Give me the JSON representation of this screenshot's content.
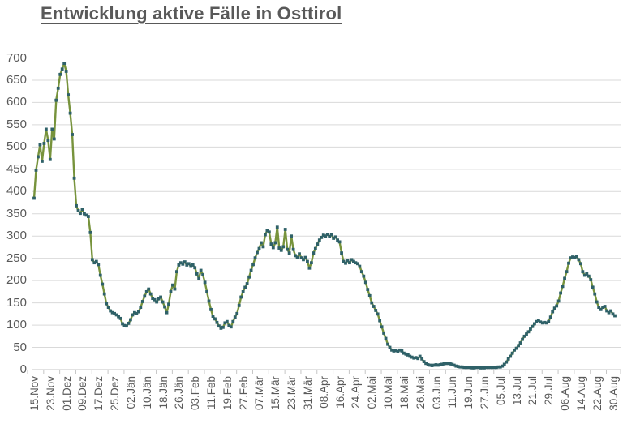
{
  "title": "Entwicklung aktive Fälle in Osttirol",
  "colors": {
    "title_text": "#595959",
    "axis_text": "#595959",
    "gridline": "#d9d9d9",
    "axis_line": "#c6c6c6",
    "series_line": "#77933C",
    "series_marker": "#2F6168",
    "background": "#ffffff"
  },
  "chart_data": {
    "type": "line",
    "title": "Entwicklung aktive Fälle in Osttirol",
    "xlabel": "",
    "ylabel": "",
    "ylim": [
      0,
      700
    ],
    "y_tick_step": 50,
    "y_tick_labels": [
      "0",
      "50",
      "100",
      "150",
      "200",
      "250",
      "300",
      "350",
      "400",
      "450",
      "500",
      "550",
      "600",
      "650",
      "700"
    ],
    "x_tick_labels": [
      "15.Nov",
      "23.Nov",
      "01.Dez",
      "09.Dez",
      "17.Dez",
      "25.Dez",
      "02.Jän",
      "10.Jän",
      "18.Jän",
      "26.Jän",
      "03.Feb",
      "11.Feb",
      "19.Feb",
      "27.Feb",
      "07.Mär",
      "15.Mär",
      "23.Mär",
      "31.Mär",
      "08.Apr",
      "16.Apr",
      "24.Apr",
      "02.Mai",
      "10.Mai",
      "18.Mai",
      "26.Mai",
      "03.Jun",
      "11.Jun",
      "19.Jun",
      "27.Jun",
      "05.Jul",
      "13.Jul",
      "21.Jul",
      "29.Jul",
      "06.Aug",
      "14.Aug",
      "22.Aug",
      "30.Aug"
    ],
    "x_tick_interval_days": 8,
    "grid": "horizontal",
    "legend": "none",
    "marker": "square",
    "series": [
      {
        "values": [
          385,
          448,
          478,
          505,
          468,
          508,
          540,
          515,
          472,
          540,
          518,
          605,
          632,
          663,
          675,
          688,
          670,
          617,
          576,
          528,
          430,
          368,
          357,
          351,
          360,
          350,
          347,
          344,
          308,
          247,
          240,
          243,
          236,
          212,
          192,
          170,
          148,
          140,
          132,
          128,
          126,
          123,
          119,
          115,
          103,
          99,
          98,
          104,
          112,
          123,
          128,
          126,
          130,
          140,
          153,
          165,
          175,
          181,
          170,
          160,
          157,
          152,
          159,
          163,
          152,
          141,
          128,
          147,
          175,
          190,
          181,
          220,
          235,
          240,
          237,
          242,
          235,
          238,
          232,
          235,
          229,
          215,
          205,
          223,
          213,
          196,
          175,
          154,
          135,
          120,
          114,
          106,
          98,
          93,
          95,
          105,
          108,
          99,
          96,
          108,
          118,
          126,
          144,
          163,
          175,
          185,
          193,
          208,
          223,
          236,
          251,
          263,
          272,
          285,
          276,
          303,
          312,
          309,
          282,
          274,
          285,
          320,
          273,
          268,
          276,
          315,
          270,
          262,
          300,
          270,
          256,
          252,
          260,
          251,
          247,
          252,
          243,
          228,
          240,
          262,
          272,
          282,
          291,
          297,
          302,
          300,
          304,
          299,
          303,
          295,
          298,
          291,
          287,
          262,
          243,
          239,
          245,
          240,
          247,
          243,
          240,
          238,
          232,
          220,
          210,
          196,
          180,
          166,
          150,
          142,
          133,
          125,
          110,
          96,
          82,
          70,
          57,
          50,
          44,
          42,
          43,
          41,
          44,
          42,
          37,
          35,
          33,
          30,
          28,
          26,
          27,
          25,
          30,
          24,
          18,
          14,
          11,
          10,
          9,
          10,
          11,
          10,
          11,
          12,
          13,
          14,
          14,
          13,
          12,
          10,
          8,
          7,
          6,
          6,
          5,
          5,
          5,
          5,
          4,
          4,
          5,
          5,
          4,
          4,
          4,
          5,
          5,
          5,
          5,
          5,
          5,
          6,
          6,
          8,
          12,
          17,
          24,
          30,
          37,
          44,
          48,
          54,
          60,
          68,
          75,
          80,
          85,
          91,
          97,
          103,
          108,
          111,
          107,
          105,
          106,
          105,
          108,
          118,
          130,
          138,
          143,
          154,
          172,
          187,
          205,
          220,
          239,
          251,
          253,
          252,
          254,
          247,
          238,
          220,
          212,
          215,
          210,
          202,
          185,
          170,
          152,
          140,
          135,
          140,
          142,
          132,
          128,
          132,
          125,
          121
        ]
      }
    ]
  }
}
